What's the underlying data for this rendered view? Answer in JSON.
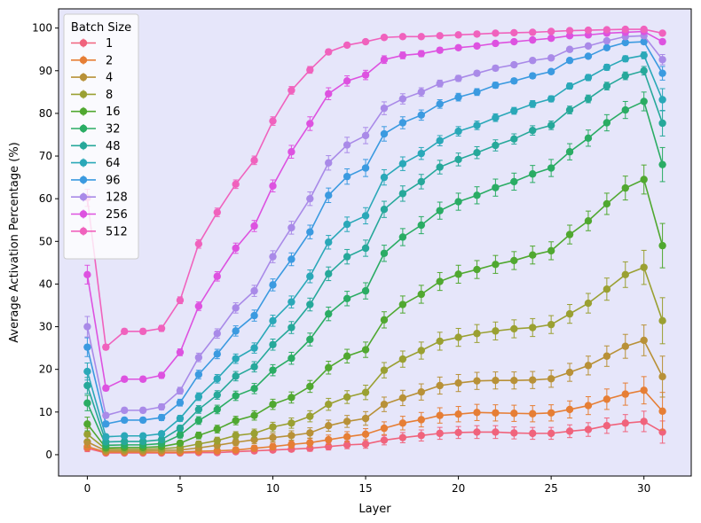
{
  "chart_data": {
    "type": "line",
    "title": "",
    "xlabel": "Layer",
    "ylabel": "Average Activation Percentage (%)",
    "xlim": [
      -1.55,
      32.55
    ],
    "ylim": [
      -5,
      104.5
    ],
    "xticks": [
      0,
      5,
      10,
      15,
      20,
      25,
      30
    ],
    "yticks": [
      0,
      10,
      20,
      30,
      40,
      50,
      60,
      70,
      80,
      90,
      100
    ],
    "legend_title": "Batch Size",
    "legend_position": "top-left",
    "background_color": "#e6e6fa",
    "x": [
      0,
      1,
      2,
      3,
      4,
      5,
      6,
      7,
      8,
      9,
      10,
      11,
      12,
      13,
      14,
      15,
      16,
      17,
      18,
      19,
      20,
      21,
      22,
      23,
      24,
      25,
      26,
      27,
      28,
      29,
      30,
      31
    ],
    "series": [
      {
        "name": "1",
        "color": "#f0637c",
        "values": [
          1.5,
          0.4,
          0.4,
          0.4,
          0.4,
          0.4,
          0.5,
          0.5,
          0.7,
          0.9,
          1.1,
          1.3,
          1.5,
          1.9,
          2.3,
          2.5,
          3.4,
          4.0,
          4.5,
          5.0,
          5.2,
          5.3,
          5.3,
          5.1,
          5.0,
          5.0,
          5.5,
          5.9,
          6.8,
          7.4,
          7.8,
          5.3
        ],
        "errors": [
          0.8,
          0.3,
          0.3,
          0.3,
          0.3,
          0.3,
          0.3,
          0.3,
          0.4,
          0.5,
          0.5,
          0.6,
          0.7,
          0.8,
          0.9,
          1.0,
          1.1,
          1.2,
          1.3,
          1.4,
          1.4,
          1.5,
          1.5,
          1.4,
          1.4,
          1.4,
          1.5,
          1.6,
          1.8,
          2.0,
          2.4,
          2.6
        ]
      },
      {
        "name": "2",
        "color": "#e67e35",
        "values": [
          1.9,
          0.6,
          0.6,
          0.6,
          0.6,
          0.6,
          0.8,
          0.9,
          1.1,
          1.5,
          1.9,
          2.4,
          2.8,
          3.5,
          4.2,
          4.8,
          6.2,
          7.4,
          8.2,
          9.2,
          9.5,
          9.9,
          9.8,
          9.7,
          9.6,
          9.8,
          10.6,
          11.5,
          13.0,
          14.2,
          15.1,
          10.2
        ],
        "errors": [
          0.9,
          0.3,
          0.3,
          0.3,
          0.3,
          0.3,
          0.4,
          0.5,
          0.6,
          0.7,
          0.8,
          0.9,
          1.0,
          1.1,
          1.2,
          1.3,
          1.5,
          1.6,
          1.7,
          1.8,
          1.8,
          1.9,
          1.9,
          1.9,
          1.9,
          1.9,
          2.0,
          2.1,
          2.4,
          2.6,
          3.2,
          4.4
        ]
      },
      {
        "name": "4",
        "color": "#b89138",
        "values": [
          3.0,
          0.9,
          0.9,
          0.9,
          1.0,
          1.1,
          1.6,
          2.2,
          2.9,
          3.5,
          4.0,
          4.5,
          5.1,
          6.8,
          7.8,
          8.5,
          11.8,
          13.3,
          14.7,
          16.2,
          16.8,
          17.3,
          17.4,
          17.4,
          17.5,
          17.8,
          19.3,
          20.9,
          23.1,
          25.4,
          26.8,
          18.3
        ],
        "errors": [
          1.2,
          0.4,
          0.4,
          0.4,
          0.4,
          0.5,
          0.6,
          0.7,
          0.8,
          0.9,
          1.0,
          1.1,
          1.2,
          1.3,
          1.4,
          1.6,
          1.7,
          1.8,
          1.9,
          2.0,
          2.0,
          2.0,
          2.0,
          2.0,
          2.0,
          2.0,
          2.1,
          2.2,
          2.4,
          2.8,
          3.6,
          4.8
        ]
      },
      {
        "name": "8",
        "color": "#9aa032",
        "values": [
          4.8,
          1.3,
          1.3,
          1.3,
          1.4,
          1.7,
          2.5,
          3.3,
          4.5,
          5.0,
          6.5,
          7.4,
          9.0,
          11.8,
          13.5,
          14.6,
          19.8,
          22.4,
          24.4,
          26.6,
          27.5,
          28.4,
          29.0,
          29.5,
          29.8,
          30.5,
          33.0,
          35.5,
          38.8,
          42.2,
          43.9,
          31.4
        ],
        "errors": [
          1.4,
          0.5,
          0.5,
          0.5,
          0.5,
          0.6,
          0.7,
          0.8,
          0.9,
          1.0,
          1.1,
          1.2,
          1.3,
          1.4,
          1.5,
          1.7,
          1.8,
          1.9,
          2.0,
          2.1,
          2.1,
          2.1,
          2.1,
          2.1,
          2.1,
          2.1,
          2.2,
          2.3,
          2.6,
          3.0,
          4.0,
          5.4
        ]
      },
      {
        "name": "16",
        "color": "#50a830",
        "values": [
          7.2,
          1.6,
          1.7,
          1.7,
          1.9,
          2.7,
          4.5,
          6.0,
          8.0,
          9.2,
          11.8,
          13.4,
          16.0,
          20.4,
          23.1,
          24.6,
          31.6,
          35.2,
          37.6,
          40.6,
          42.3,
          43.4,
          44.6,
          45.5,
          46.8,
          47.8,
          51.6,
          54.8,
          58.8,
          62.5,
          64.5,
          49.0
        ],
        "errors": [
          1.6,
          0.5,
          0.5,
          0.5,
          0.5,
          0.6,
          0.8,
          0.9,
          1.0,
          1.1,
          1.2,
          1.3,
          1.4,
          1.5,
          1.6,
          1.8,
          1.9,
          2.0,
          2.1,
          2.1,
          2.1,
          2.1,
          2.1,
          2.1,
          2.1,
          2.1,
          2.2,
          2.3,
          2.5,
          2.8,
          3.4,
          5.2
        ]
      },
      {
        "name": "32",
        "color": "#2aac64",
        "values": [
          12.1,
          2.2,
          2.3,
          2.3,
          2.6,
          4.6,
          8.0,
          10.6,
          13.8,
          15.5,
          19.8,
          22.6,
          27.0,
          33.0,
          36.6,
          38.4,
          47.2,
          51.0,
          53.8,
          57.2,
          59.3,
          60.8,
          62.6,
          64.0,
          65.8,
          67.2,
          71.0,
          74.2,
          77.8,
          80.8,
          82.8,
          68.0
        ],
        "errors": [
          1.8,
          0.5,
          0.5,
          0.5,
          0.6,
          0.7,
          0.9,
          1.0,
          1.1,
          1.2,
          1.3,
          1.4,
          1.5,
          1.6,
          1.7,
          1.9,
          1.9,
          2.0,
          2.0,
          2.0,
          2.0,
          2.0,
          2.0,
          2.0,
          2.0,
          2.0,
          1.9,
          1.9,
          1.9,
          2.0,
          2.2,
          4.0
        ]
      },
      {
        "name": "48",
        "color": "#26a89a",
        "values": [
          16.2,
          3.0,
          3.1,
          3.1,
          3.5,
          6.2,
          10.6,
          14.0,
          18.4,
          20.6,
          25.8,
          29.8,
          35.2,
          42.4,
          46.4,
          48.4,
          57.5,
          61.2,
          64.0,
          67.4,
          69.2,
          70.8,
          72.5,
          74.0,
          76.0,
          77.2,
          80.8,
          83.4,
          86.4,
          88.8,
          90.0,
          77.7
        ],
        "errors": [
          1.9,
          0.5,
          0.5,
          0.5,
          0.6,
          0.7,
          0.9,
          1.0,
          1.1,
          1.2,
          1.3,
          1.4,
          1.5,
          1.6,
          1.7,
          1.9,
          1.9,
          1.8,
          1.7,
          1.6,
          1.5,
          1.4,
          1.3,
          1.2,
          1.1,
          1.0,
          0.9,
          0.9,
          0.9,
          0.9,
          1.0,
          3.0
        ]
      },
      {
        "name": "64",
        "color": "#2aa8b8",
        "values": [
          19.5,
          4.2,
          4.4,
          4.4,
          4.9,
          8.5,
          13.6,
          17.8,
          22.5,
          25.0,
          31.4,
          35.8,
          41.8,
          49.8,
          54.0,
          56.0,
          65.0,
          68.2,
          70.6,
          73.6,
          75.8,
          77.2,
          79.0,
          80.6,
          82.2,
          83.4,
          86.4,
          88.4,
          90.8,
          92.8,
          93.6,
          83.2
        ],
        "errors": [
          2.0,
          0.5,
          0.5,
          0.5,
          0.6,
          0.7,
          0.9,
          1.0,
          1.1,
          1.2,
          1.3,
          1.4,
          1.5,
          1.6,
          1.7,
          1.9,
          1.8,
          1.6,
          1.4,
          1.2,
          1.1,
          1.0,
          0.9,
          0.8,
          0.8,
          0.7,
          0.7,
          0.7,
          0.7,
          0.7,
          0.8,
          2.6
        ]
      },
      {
        "name": "96",
        "color": "#3b9ae0",
        "values": [
          25.2,
          7.2,
          8.1,
          8.1,
          8.7,
          12.2,
          18.8,
          23.6,
          29.0,
          32.6,
          39.8,
          45.8,
          52.2,
          60.8,
          65.2,
          67.2,
          75.2,
          77.8,
          79.6,
          82.2,
          83.8,
          85.0,
          86.6,
          87.6,
          88.8,
          89.8,
          92.4,
          93.4,
          95.4,
          96.6,
          96.8,
          89.4
        ],
        "errors": [
          2.2,
          0.6,
          0.6,
          0.6,
          0.7,
          0.8,
          1.0,
          1.1,
          1.2,
          1.3,
          1.4,
          1.5,
          1.6,
          1.7,
          1.8,
          2.0,
          1.7,
          1.4,
          1.2,
          1.0,
          0.9,
          0.8,
          0.7,
          0.6,
          0.6,
          0.5,
          0.5,
          0.5,
          0.5,
          0.5,
          0.6,
          1.6
        ]
      },
      {
        "name": "128",
        "color": "#a98ae8",
        "values": [
          30.0,
          9.2,
          10.4,
          10.4,
          11.2,
          15.0,
          22.8,
          28.4,
          34.4,
          38.4,
          46.4,
          53.2,
          60.0,
          68.4,
          72.6,
          74.8,
          81.2,
          83.4,
          85.0,
          87.0,
          88.2,
          89.4,
          90.6,
          91.4,
          92.4,
          93.0,
          95.0,
          95.8,
          97.0,
          98.0,
          98.2,
          92.6
        ],
        "errors": [
          2.4,
          0.6,
          0.6,
          0.6,
          0.7,
          0.8,
          1.0,
          1.1,
          1.2,
          1.3,
          1.4,
          1.5,
          1.6,
          1.7,
          1.8,
          1.9,
          1.5,
          1.2,
          1.0,
          0.8,
          0.7,
          0.6,
          0.6,
          0.5,
          0.5,
          0.5,
          0.4,
          0.4,
          0.4,
          0.4,
          0.5,
          1.2
        ]
      },
      {
        "name": "256",
        "color": "#dd52e0",
        "values": [
          42.2,
          15.6,
          17.7,
          17.7,
          18.6,
          24.0,
          34.8,
          41.8,
          48.4,
          53.6,
          63.0,
          71.0,
          77.6,
          84.6,
          87.6,
          89.0,
          92.6,
          93.6,
          94.0,
          94.8,
          95.4,
          95.8,
          96.4,
          96.8,
          97.2,
          97.6,
          98.2,
          98.4,
          98.8,
          99.0,
          99.2,
          96.8
        ],
        "errors": [
          2.2,
          0.6,
          0.6,
          0.6,
          0.7,
          0.8,
          1.0,
          1.1,
          1.2,
          1.3,
          1.4,
          1.5,
          1.6,
          1.4,
          1.2,
          1.1,
          0.9,
          0.8,
          0.7,
          0.6,
          0.5,
          0.5,
          0.4,
          0.4,
          0.4,
          0.4,
          0.3,
          0.3,
          0.3,
          0.3,
          0.3,
          0.6
        ]
      },
      {
        "name": "512",
        "color": "#f062bd",
        "values": [
          60.2,
          25.2,
          28.9,
          28.9,
          29.6,
          36.2,
          49.4,
          56.8,
          63.4,
          69.0,
          78.2,
          85.4,
          90.2,
          94.4,
          96.0,
          96.8,
          97.8,
          98.0,
          98.0,
          98.2,
          98.4,
          98.6,
          98.8,
          98.9,
          99.0,
          99.2,
          99.4,
          99.5,
          99.6,
          99.7,
          99.7,
          98.8
        ],
        "errors": [
          2.0,
          0.6,
          0.6,
          0.6,
          0.7,
          0.8,
          1.0,
          1.0,
          1.0,
          1.0,
          1.0,
          0.9,
          0.8,
          0.6,
          0.5,
          0.5,
          0.4,
          0.3,
          0.3,
          0.3,
          0.3,
          0.2,
          0.2,
          0.2,
          0.2,
          0.2,
          0.2,
          0.2,
          0.2,
          0.2,
          0.2,
          0.4
        ]
      }
    ]
  }
}
